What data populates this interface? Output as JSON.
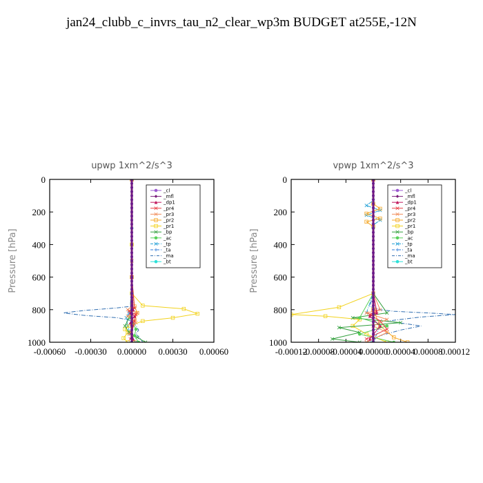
{
  "title": "jan24_clubb_c_invrs_tau_n2_clear_wp3m  BUDGET at255E,-12N",
  "legend_labels": [
    "_cl",
    "_mfl",
    "_dp1",
    "_pr4",
    "_pr3",
    "_pr2",
    "_pr1",
    "_bp",
    "_ac",
    "_tp",
    "_ta",
    "_ma",
    "_bt"
  ],
  "series_colors": {
    "_cl": "#9b59d0",
    "_mfl": "#7a1d7a",
    "_dp1": "#c0175e",
    "_pr4": "#e8383d",
    "_pr3": "#f08c5a",
    "_pr2": "#f5a623",
    "_pr1": "#f2d21b",
    "_bp": "#2f9e3a",
    "_ac": "#58d15a",
    "_tp": "#1f9fd6",
    "_ta": "#2878d8",
    "_ma": "#2f6db0",
    "_bt": "#2ce0d8"
  },
  "chart_data": [
    {
      "type": "line",
      "title": "upwp   1xm^2/s^3",
      "ylabel": "Pressure [hPa]",
      "xlim": [
        -0.0006,
        0.0006
      ],
      "ylim": [
        1000,
        0
      ],
      "xticks": [
        -0.0006,
        -0.0003,
        0.0,
        0.0003,
        0.0006
      ],
      "xtick_labels": [
        "-0.00060",
        "-0.00030",
        "0.00000",
        "0.00030",
        "0.00060"
      ],
      "yticks": [
        0,
        200,
        400,
        600,
        800,
        1000
      ],
      "legend": "top-right",
      "series": [
        {
          "name": "_ma",
          "style": "dashdot",
          "x": [
            0,
            0,
            0,
            -1e-05,
            -0.00012,
            -0.00035,
            -0.0005,
            -0.00035,
            -0.0001,
            1e-05,
            3e-05,
            5e-05,
            3e-05,
            6e-05,
            8e-05
          ],
          "y": [
            0,
            300,
            600,
            780,
            790,
            805,
            820,
            835,
            850,
            870,
            900,
            925,
            950,
            975,
            1000
          ]
        },
        {
          "name": "_tp",
          "style": "dashdot",
          "x": [
            0,
            0,
            0,
            1e-05,
            -2e-05,
            -4e-05,
            -3e-05,
            -1e-05,
            3e-05
          ],
          "y": [
            0,
            400,
            700,
            800,
            820,
            850,
            900,
            950,
            1000
          ]
        },
        {
          "name": "_pr1",
          "style": "solid",
          "x": [
            0,
            0,
            0,
            8e-05,
            0.00038,
            0.00048,
            0.0003,
            8e-05,
            -2e-05,
            -5e-05,
            -3e-05,
            -6e-05,
            -3e-05
          ],
          "y": [
            0,
            400,
            700,
            775,
            795,
            825,
            850,
            870,
            900,
            920,
            940,
            975,
            1000
          ]
        },
        {
          "name": "_pr2",
          "style": "solid",
          "x": [
            0,
            0,
            2e-05,
            4e-05,
            2e-05,
            -1e-05,
            2e-05
          ],
          "y": [
            0,
            600,
            780,
            820,
            860,
            940,
            1000
          ]
        },
        {
          "name": "_bp",
          "style": "solid",
          "x": [
            0,
            0,
            0,
            1e-05,
            -2e-05,
            -5e-05,
            -2e-05,
            4e-05,
            0.0001
          ],
          "y": [
            0,
            500,
            750,
            800,
            850,
            900,
            940,
            970,
            1000
          ]
        },
        {
          "name": "_ac",
          "style": "solid",
          "x": [
            0,
            0,
            -1e-05,
            3e-05,
            2e-05,
            5e-05
          ],
          "y": [
            0,
            600,
            850,
            920,
            960,
            1000
          ]
        },
        {
          "name": "_pr3",
          "style": "solid",
          "x": [
            0,
            0,
            0,
            -3e-05,
            4e-05,
            -3e-05,
            3e-05,
            -2e-05
          ],
          "y": [
            0,
            500,
            780,
            800,
            820,
            840,
            880,
            950
          ]
        },
        {
          "name": "_pr4",
          "style": "solid",
          "x": [
            0,
            0,
            2e-05,
            -2e-05,
            3e-05,
            2e-05,
            -1e-05
          ],
          "y": [
            0,
            600,
            790,
            810,
            830,
            870,
            980
          ]
        },
        {
          "name": "_dp1",
          "style": "solid",
          "x": [
            0,
            0,
            1e-05,
            -1e-05,
            2e-05,
            -1e-05,
            1e-05
          ],
          "y": [
            0,
            600,
            800,
            820,
            840,
            880,
            980
          ]
        },
        {
          "name": "_cl",
          "style": "solid",
          "x": [
            0,
            0,
            0,
            0
          ],
          "y": [
            0,
            300,
            700,
            1000
          ]
        },
        {
          "name": "_mfl",
          "style": "solid",
          "x": [
            0,
            0,
            0,
            0
          ],
          "y": [
            0,
            300,
            700,
            1000
          ]
        },
        {
          "name": "_bt",
          "style": "solid",
          "x": [
            0,
            0,
            0,
            0
          ],
          "y": [
            0,
            300,
            700,
            1000
          ]
        }
      ]
    },
    {
      "type": "line",
      "title": "vpwp   1xm^2/s^3",
      "ylabel": "Pressure [hPa]",
      "xlim": [
        -0.00012,
        0.00012
      ],
      "ylim": [
        1000,
        0
      ],
      "xticks": [
        -0.00012,
        -8e-05,
        -4e-05,
        0.0,
        4e-05,
        8e-05,
        0.00012
      ],
      "xtick_labels": [
        "-0.00012",
        "-0.00008",
        "-0.00004",
        "0.00000",
        "0.00004",
        "0.00008",
        "0.00012"
      ],
      "yticks": [
        0,
        200,
        400,
        600,
        800,
        1000
      ],
      "legend": "top-right",
      "series": [
        {
          "name": "_ma",
          "style": "dashdot",
          "x": [
            0,
            0,
            -5e-06,
            1e-05,
            3e-05,
            8e-05,
            0.00012,
            7e-05,
            2e-05,
            7e-05,
            4e-05,
            1e-05,
            -5e-06
          ],
          "y": [
            0,
            700,
            780,
            800,
            810,
            820,
            830,
            845,
            870,
            900,
            925,
            960,
            1000
          ]
        },
        {
          "name": "_tp",
          "style": "dashdot",
          "x": [
            0,
            0,
            -1e-05,
            1e-05,
            -1e-05,
            1e-05,
            0,
            0,
            -1e-05,
            1e-05,
            0
          ],
          "y": [
            0,
            130,
            160,
            190,
            220,
            250,
            280,
            700,
            820,
            900,
            1000
          ]
        },
        {
          "name": "_pr1",
          "style": "solid",
          "x": [
            0,
            0,
            -5e-05,
            -0.00012,
            -7e-05,
            -2e-05,
            -3e-05,
            -1e-05,
            2e-05
          ],
          "y": [
            0,
            700,
            785,
            830,
            840,
            860,
            900,
            950,
            1000
          ]
        },
        {
          "name": "_pr2",
          "style": "solid",
          "x": [
            0,
            0,
            1e-05,
            -1e-05,
            1e-05,
            -1e-05,
            0,
            0,
            1e-05,
            3e-05,
            5e-05
          ],
          "y": [
            0,
            150,
            180,
            210,
            240,
            260,
            290,
            800,
            900,
            970,
            1000
          ]
        },
        {
          "name": "_bp",
          "style": "solid",
          "x": [
            0,
            0,
            2e-05,
            -3e-05,
            4e-05,
            -5e-05,
            -2e-05,
            -6e-05,
            -2e-05
          ],
          "y": [
            0,
            700,
            820,
            850,
            880,
            910,
            940,
            980,
            1000
          ]
        },
        {
          "name": "_ac",
          "style": "solid",
          "x": [
            0,
            0,
            -2e-05,
            2e-05,
            -2e-05,
            3e-05
          ],
          "y": [
            0,
            700,
            850,
            900,
            950,
            1000
          ]
        },
        {
          "name": "_pr3",
          "style": "solid",
          "x": [
            0,
            0,
            1e-05,
            -1e-05,
            2e-05,
            0,
            2e-05,
            -1e-05
          ],
          "y": [
            0,
            700,
            800,
            820,
            860,
            900,
            940,
            1000
          ]
        },
        {
          "name": "_pr4",
          "style": "solid",
          "x": [
            0,
            0,
            5e-06,
            -5e-06,
            1e-05,
            2e-05,
            -1e-05
          ],
          "y": [
            0,
            700,
            810,
            830,
            870,
            920,
            980
          ]
        },
        {
          "name": "_dp1",
          "style": "solid",
          "x": [
            0,
            0,
            5e-06,
            -5e-06,
            1e-05,
            -5e-06
          ],
          "y": [
            0,
            700,
            820,
            840,
            900,
            980
          ]
        },
        {
          "name": "_cl",
          "style": "solid",
          "x": [
            0,
            0,
            0,
            0
          ],
          "y": [
            0,
            300,
            700,
            1000
          ]
        },
        {
          "name": "_mfl",
          "style": "solid",
          "x": [
            0,
            0,
            0,
            0
          ],
          "y": [
            0,
            300,
            700,
            1000
          ]
        },
        {
          "name": "_bt",
          "style": "solid",
          "x": [
            0,
            0,
            0,
            0
          ],
          "y": [
            0,
            300,
            700,
            1000
          ]
        }
      ]
    }
  ]
}
